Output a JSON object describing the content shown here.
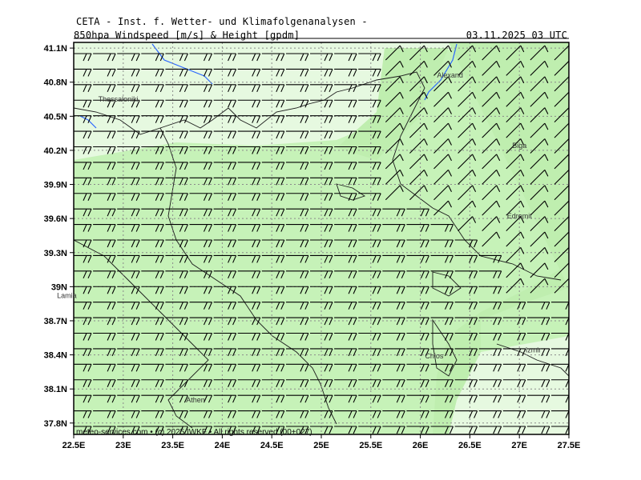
{
  "header": {
    "title": "CETA - Inst. f. Wetter- und Klimafolgenanalysen -",
    "subtitle": "850hpa Windspeed [m/s] & Height [gpdm]",
    "timestamp": "03.11.2025 03 UTC"
  },
  "map": {
    "lon_range": [
      22.5,
      27.5
    ],
    "lat_range": [
      37.7,
      41.15
    ],
    "lon_ticks": [
      "22.5E",
      "23E",
      "23.5E",
      "24E",
      "24.5E",
      "25E",
      "25.5E",
      "26E",
      "26.5E",
      "27E",
      "27.5E"
    ],
    "lat_ticks": [
      "41.1N",
      "40.8N",
      "40.5N",
      "40.2N",
      "39.9N",
      "39.6N",
      "39.3N",
      "39N",
      "38.7N",
      "38.4N",
      "38.1N",
      "37.8N"
    ],
    "cities": [
      {
        "name": "Thessaloniki",
        "lon": 22.95,
        "lat": 40.63
      },
      {
        "name": "Alexand",
        "lon": 26.3,
        "lat": 40.84
      },
      {
        "name": "Biga",
        "lon": 27.0,
        "lat": 40.22
      },
      {
        "name": "Edremit",
        "lon": 27.0,
        "lat": 39.6
      },
      {
        "name": "Lamia",
        "lon": 22.43,
        "lat": 38.9
      },
      {
        "name": "Chios",
        "lon": 26.14,
        "lat": 38.37
      },
      {
        "name": "Izmir",
        "lon": 27.14,
        "lat": 38.42
      },
      {
        "name": "Athen",
        "lon": 23.73,
        "lat": 37.98
      }
    ],
    "colors": {
      "fill_light": "#e6f9e0",
      "fill_mid": "#c6f2b8",
      "fill_strong": "#bfeeaf",
      "coast": "#1a1a1a",
      "river": "#2a66ff",
      "grid": "#8a8a8a",
      "barb": "#000000"
    },
    "copyright": "meteo-services.com • (c) 2025 IWKF • All rights reserved (00+027)"
  }
}
